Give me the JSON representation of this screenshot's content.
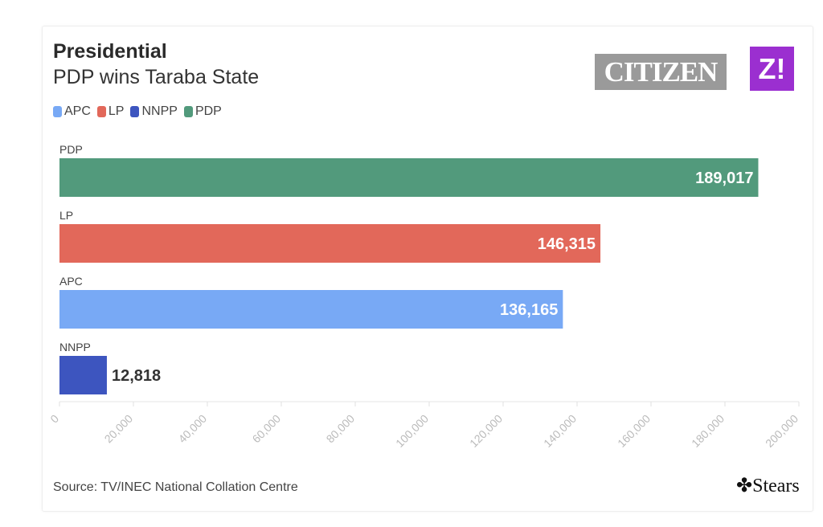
{
  "header": {
    "title": "Presidential",
    "subtitle": "PDP wins Taraba State"
  },
  "logos": {
    "citizen": "CITIZEN",
    "zikoko": "Z!",
    "stears": "Stears"
  },
  "source": "Source: TV/INEC National Collation Centre",
  "chart_data": {
    "type": "bar",
    "orientation": "horizontal",
    "title": "Presidential",
    "subtitle": "PDP wins Taraba State",
    "legend": [
      {
        "name": "APC",
        "color": "#78a9f5"
      },
      {
        "name": "LP",
        "color": "#e2685a"
      },
      {
        "name": "NNPP",
        "color": "#3d55bf"
      },
      {
        "name": "PDP",
        "color": "#529a7c"
      }
    ],
    "legend_position": "top-left",
    "categories": [
      "PDP",
      "LP",
      "APC",
      "NNPP"
    ],
    "values": [
      189017,
      146315,
      136165,
      12818
    ],
    "value_labels": [
      "189,017",
      "146,315",
      "136,165",
      "12,818"
    ],
    "colors": [
      "#529a7c",
      "#e2685a",
      "#78a9f5",
      "#3d55bf"
    ],
    "xlim": [
      0,
      200000
    ],
    "xticks": [
      0,
      20000,
      40000,
      60000,
      80000,
      100000,
      120000,
      140000,
      160000,
      180000,
      200000
    ],
    "xtick_labels": [
      "0",
      "20,000",
      "40,000",
      "60,000",
      "80,000",
      "100,000",
      "120,000",
      "140,000",
      "160,000",
      "180,000",
      "200,000"
    ],
    "xlabel": "",
    "ylabel": "",
    "grid": false
  }
}
